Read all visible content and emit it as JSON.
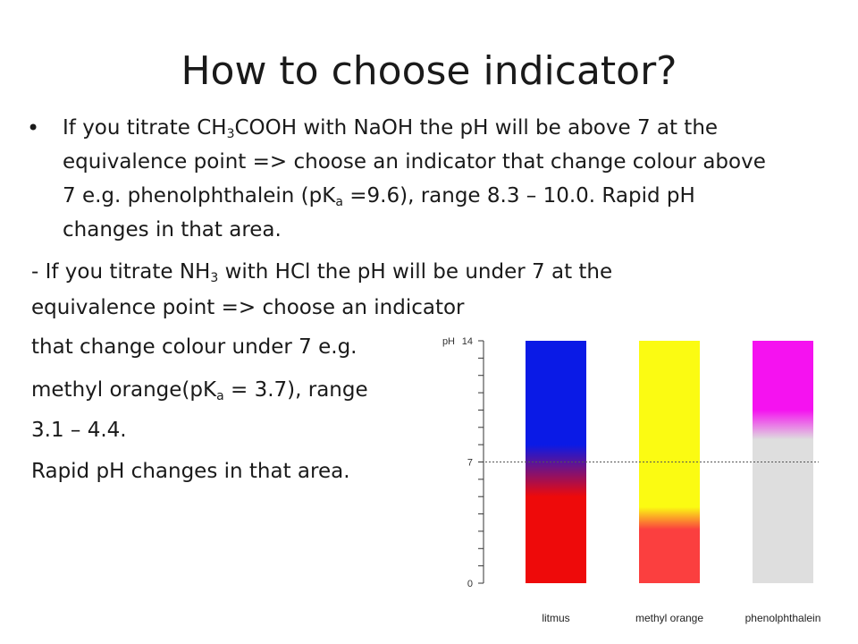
{
  "slide": {
    "title": "How to choose indicator?",
    "bullet": {
      "parts": [
        "If you titrate CH",
        "3",
        "COOH with NaOH the pH will be above 7 at the equivalence point => choose an indicator that change colour above 7 e.g. phenolphthalein (pK",
        "a",
        " =9.6), range 8.3 – 10.0. Rapid pH changes in that area."
      ]
    },
    "paragraph": {
      "parts": [
        "- If you titrate NH",
        "3",
        " with HCl the pH will be under 7 at the equivalence point => choose an indicator"
      ]
    },
    "lines": {
      "line1": "that change colour under 7 e.g.",
      "line2_a": "methyl orange(pK",
      "line2_sub": "a",
      "line2_b": " = 3.7), range",
      "line3": "3.1 – 4.4.",
      "line4": "Rapid pH changes in that area."
    }
  },
  "chart_data": {
    "type": "bar",
    "axis": {
      "label": "pH",
      "ticks": [
        "14",
        "7",
        "0"
      ],
      "range": [
        0,
        14
      ],
      "reference_line": 7
    },
    "categories": [
      "litmus",
      "methyl orange",
      "phenolphthalein"
    ],
    "bars": [
      {
        "name": "litmus",
        "top_color": "#0a1ae6",
        "bottom_color": "#ee0a0a",
        "transition_range": [
          5,
          8
        ]
      },
      {
        "name": "methyl orange",
        "top_color": "#fbfb12",
        "bottom_color": "#fb3f3f",
        "transition_range": [
          3.1,
          4.4
        ]
      },
      {
        "name": "phenolphthalein",
        "top_color": "#f512f0",
        "bottom_color": "#dedede",
        "transition_range": [
          8.3,
          10.0
        ]
      }
    ]
  }
}
